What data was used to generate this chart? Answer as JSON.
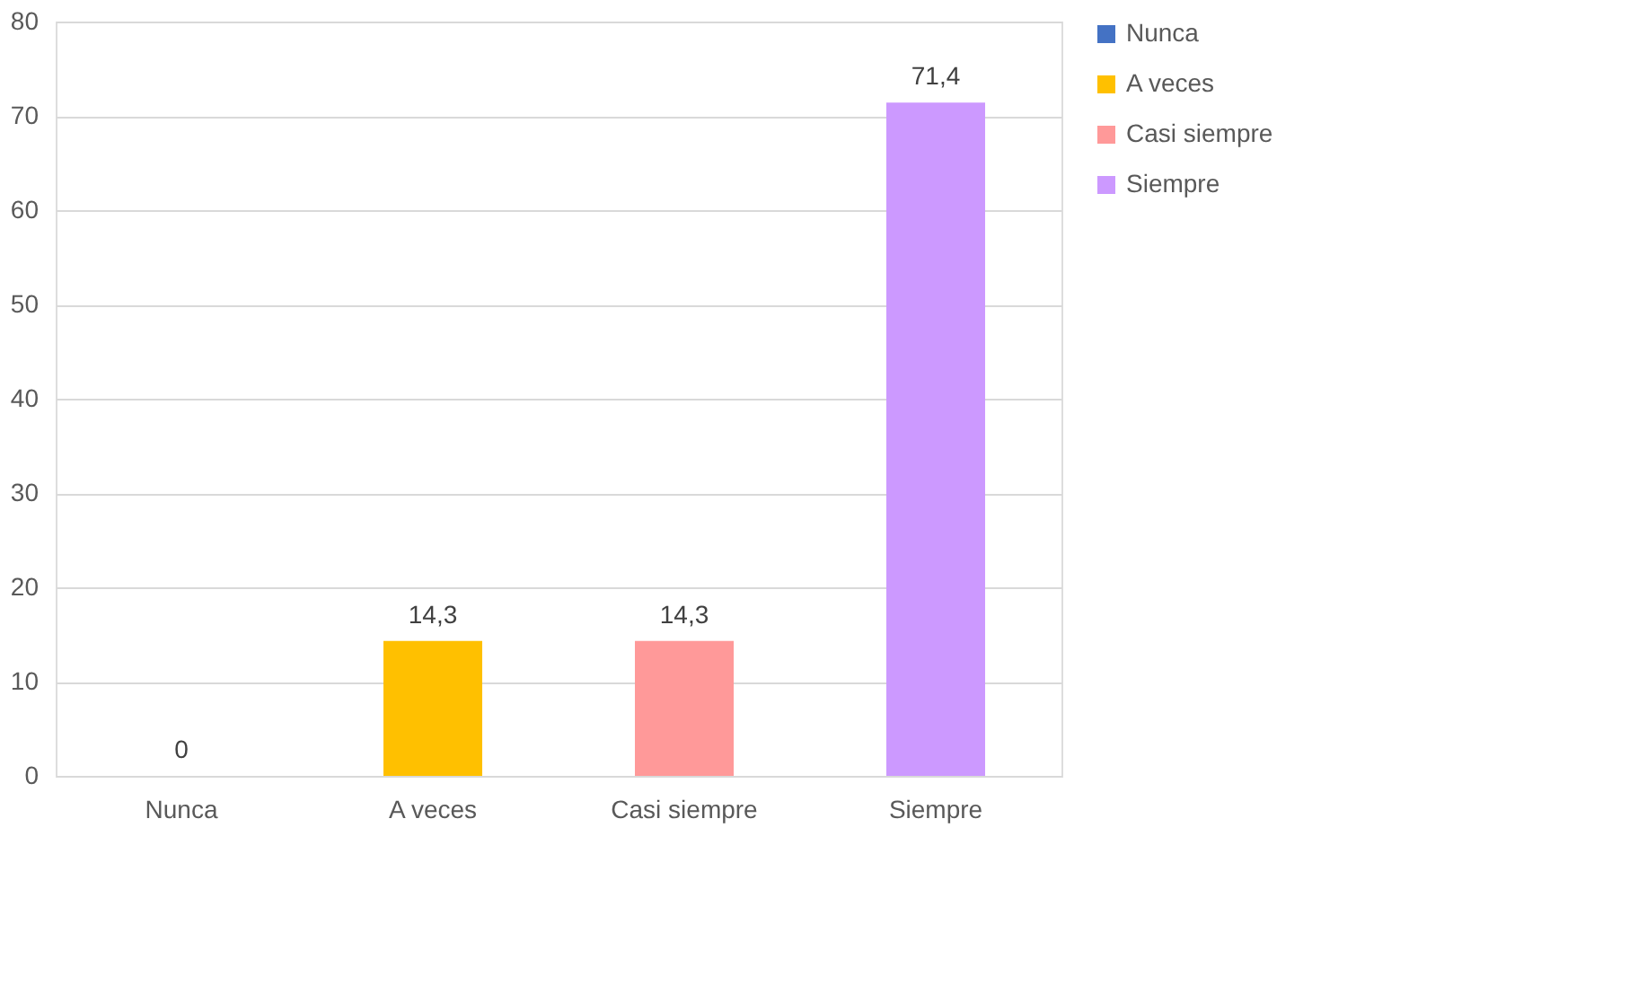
{
  "chart_data": {
    "type": "bar",
    "categories": [
      "Nunca",
      "A veces",
      "Casi siempre",
      "Siempre"
    ],
    "series": [
      {
        "name": "Nunca",
        "color": "#4472c4",
        "values": [
          0,
          null,
          null,
          null
        ],
        "value_labels": [
          "0",
          null,
          null,
          null
        ]
      },
      {
        "name": "A veces",
        "color": "#ffc000",
        "values": [
          null,
          14.3,
          null,
          null
        ],
        "value_labels": [
          null,
          "14,3",
          null,
          null
        ]
      },
      {
        "name": "Casi siempre",
        "color": "#ff9999",
        "values": [
          null,
          null,
          14.3,
          null
        ],
        "value_labels": [
          null,
          null,
          "14,3",
          null
        ]
      },
      {
        "name": "Siempre",
        "color": "#cc99ff",
        "values": [
          null,
          null,
          null,
          71.4
        ],
        "value_labels": [
          null,
          null,
          null,
          "71,4"
        ]
      }
    ],
    "ylim": [
      0,
      80
    ],
    "yticks": [
      0,
      10,
      20,
      30,
      40,
      50,
      60,
      70,
      80
    ],
    "grid": "y",
    "legend": "right"
  }
}
